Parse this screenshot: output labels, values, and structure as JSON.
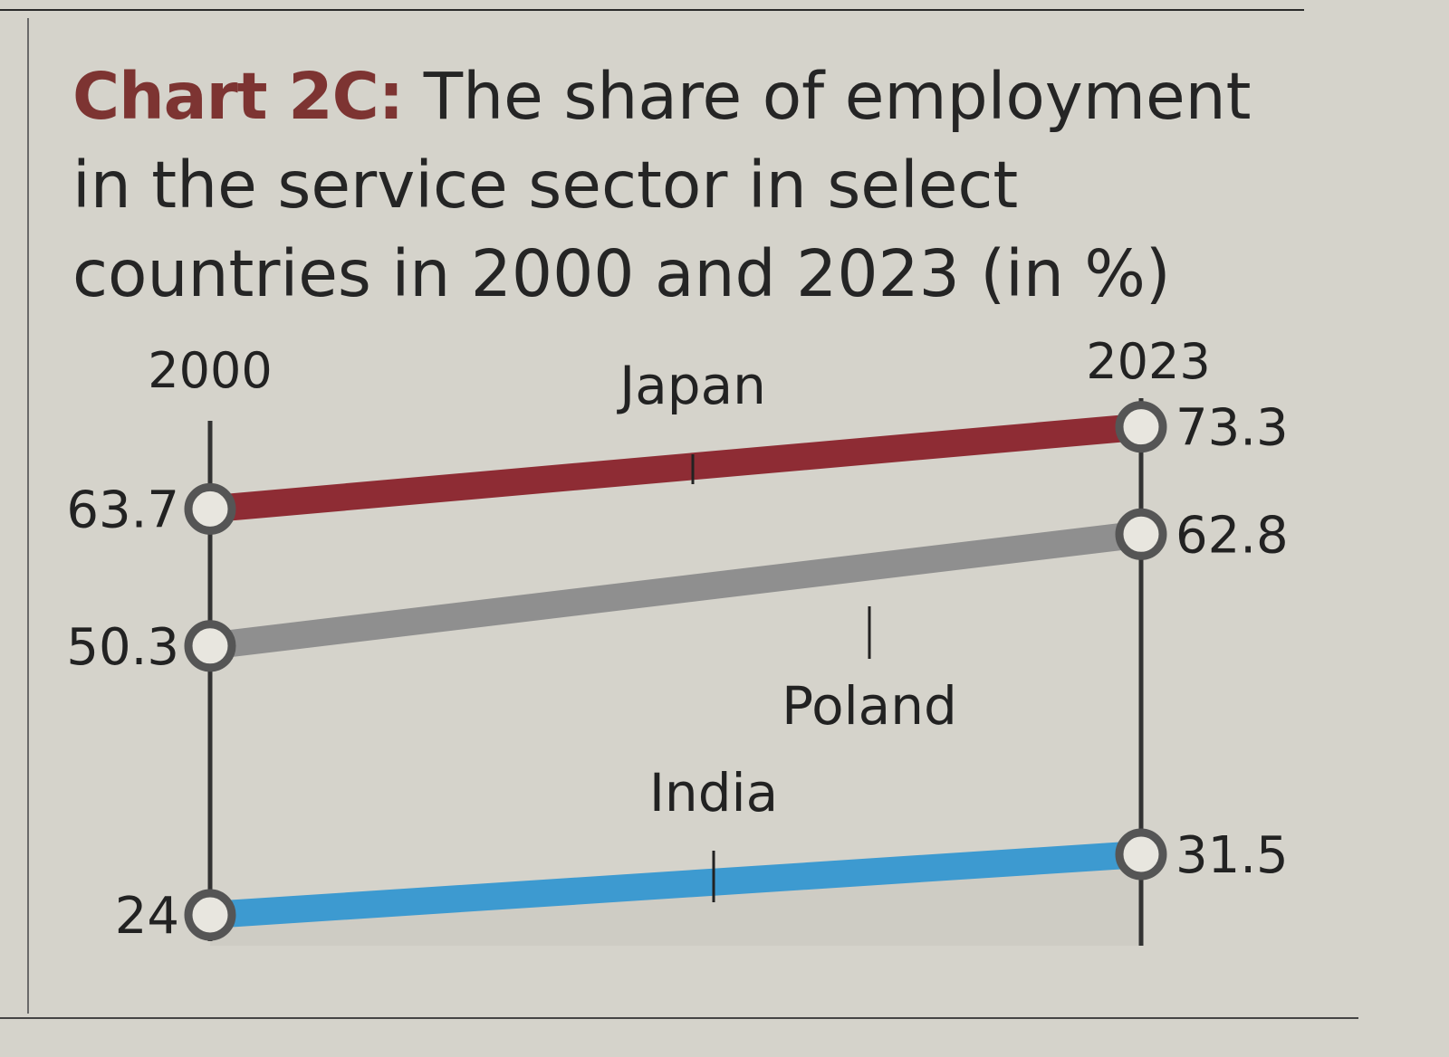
{
  "title_prefix": "Chart 2C:",
  "title_text": "The share of employment in the service sector in select countries in 2000 and 2023 (in %)",
  "chart_data": {
    "type": "line",
    "chart_style": "slope",
    "x": [
      "2000",
      "2023"
    ],
    "series": [
      {
        "name": "Japan",
        "values": [
          63.7,
          73.3
        ],
        "value_labels": [
          "63.7",
          "73.3"
        ],
        "color": "#8e2c34"
      },
      {
        "name": "Poland",
        "values": [
          50.3,
          62.8
        ],
        "value_labels": [
          "50.3",
          "62.8"
        ],
        "color": "#8f8f8f"
      },
      {
        "name": "India",
        "values": [
          24,
          31.5
        ],
        "value_labels": [
          "24",
          "31.5"
        ],
        "color": "#3d9ad0"
      }
    ],
    "grid": false,
    "legend": "none"
  },
  "colors": {
    "title_prefix": "#7d3432",
    "axis": "#333333",
    "marker_fill": "#e8e6df",
    "shade": "#c9c7c0"
  }
}
